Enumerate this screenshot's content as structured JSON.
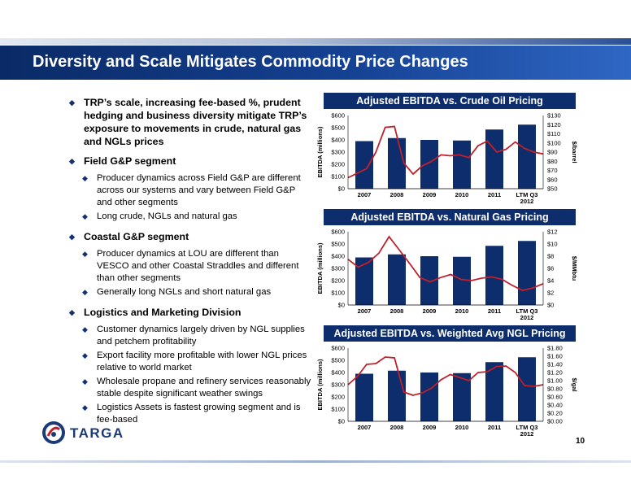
{
  "slide": {
    "title": "Diversity and Scale Mitigates Commodity Price Changes",
    "page_number": "10",
    "logo_text": "TARGA"
  },
  "colors": {
    "bar": "#0d2d6c",
    "line": "#c0202a",
    "header": "#0d2d6c"
  },
  "bullets": [
    {
      "text": "TRP’s scale, increasing fee-based %, prudent hedging and business diversity mitigate TRP’s exposure to movements in crude, natural gas and NGLs prices",
      "subs": []
    },
    {
      "text": "Field G&P segment",
      "subs": [
        "Producer dynamics across Field G&P are different across our systems and vary between Field G&P and other segments",
        "Long crude, NGLs and natural gas"
      ]
    },
    {
      "text": "Coastal G&P segment",
      "subs": [
        "Producer dynamics at LOU are different than VESCO and other Coastal Straddles and different than other segments",
        "Generally long NGLs and short natural gas"
      ]
    },
    {
      "text": "Logistics and Marketing Division",
      "subs": [
        "Customer dynamics largely driven by NGL supplies and petchem profitability",
        "Export facility more profitable with lower NGL prices relative to world market",
        "Wholesale propane and refinery services reasonably stable despite significant weather swings",
        "Logistics Assets is fastest growing segment and is fee-based"
      ]
    }
  ],
  "chart_data": [
    {
      "type": "bar+line",
      "title": "Adjusted EBITDA vs. Crude Oil Pricing",
      "categories": [
        "2007",
        "2008",
        "2009",
        "2010",
        "2011",
        "LTM Q3 2012"
      ],
      "left_axis": {
        "label": "EBITDA (millions)",
        "range": [
          0,
          600
        ],
        "ticks": [
          "$0",
          "$100",
          "$200",
          "$300",
          "$400",
          "$500",
          "$600"
        ]
      },
      "right_axis": {
        "label": "$/barrel",
        "range": [
          50,
          130
        ],
        "ticks": [
          "$50",
          "$60",
          "$70",
          "$80",
          "$90",
          "$100",
          "$110",
          "$120",
          "$130"
        ]
      },
      "bars": [
        390,
        415,
        400,
        395,
        485,
        525
      ],
      "line": [
        62,
        67,
        72,
        90,
        117,
        118,
        78,
        66,
        75,
        80,
        87,
        86,
        87,
        84,
        97,
        102,
        90,
        93,
        101,
        94,
        90,
        88
      ]
    },
    {
      "type": "bar+line",
      "title": "Adjusted EBITDA vs. Natural Gas Pricing",
      "categories": [
        "2007",
        "2008",
        "2009",
        "2010",
        "2011",
        "LTM Q3 2012"
      ],
      "left_axis": {
        "label": "EBITDA (millions)",
        "range": [
          0,
          600
        ],
        "ticks": [
          "$0",
          "$100",
          "$200",
          "$300",
          "$400",
          "$500",
          "$600"
        ]
      },
      "right_axis": {
        "label": "$/MMbtu",
        "range": [
          0,
          12
        ],
        "ticks": [
          "$0",
          "$2",
          "$4",
          "$6",
          "$8",
          "$10",
          "$12"
        ]
      },
      "bars": [
        390,
        415,
        400,
        395,
        485,
        525
      ],
      "line": [
        7.5,
        6.2,
        7.0,
        8.5,
        11.2,
        9.0,
        6.8,
        4.5,
        3.8,
        4.5,
        5.0,
        4.2,
        4.0,
        4.4,
        4.6,
        4.2,
        3.2,
        2.4,
        2.8,
        3.5
      ]
    },
    {
      "type": "bar+line",
      "title": "Adjusted EBITDA vs. Weighted Avg NGL Pricing",
      "categories": [
        "2007",
        "2008",
        "2009",
        "2010",
        "2011",
        "LTM Q3 2012"
      ],
      "left_axis": {
        "label": "EBITDA (millions)",
        "range": [
          0,
          600
        ],
        "ticks": [
          "$0",
          "$100",
          "$200",
          "$300",
          "$400",
          "$500",
          "$600"
        ]
      },
      "right_axis": {
        "label": "$/gal",
        "range": [
          0,
          1.8
        ],
        "ticks": [
          "$0.00",
          "$0.20",
          "$0.40",
          "$0.60",
          "$0.80",
          "$1.00",
          "$1.20",
          "$1.40",
          "$1.60",
          "$1.80"
        ]
      },
      "bars": [
        390,
        415,
        400,
        395,
        485,
        525
      ],
      "line": [
        0.9,
        1.1,
        1.4,
        1.42,
        1.58,
        1.56,
        0.72,
        0.64,
        0.7,
        0.82,
        1.02,
        1.15,
        1.08,
        1.0,
        1.2,
        1.22,
        1.35,
        1.36,
        1.2,
        0.88,
        0.86,
        0.9
      ]
    }
  ]
}
